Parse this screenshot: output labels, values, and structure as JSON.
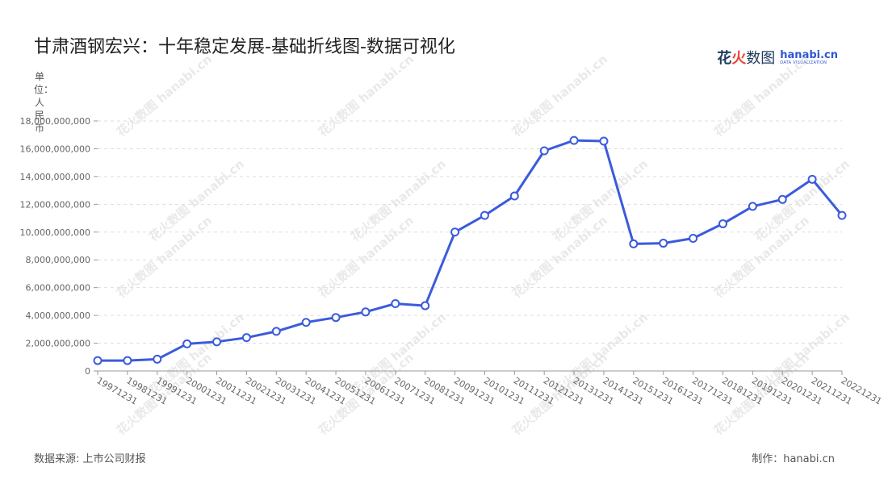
{
  "page": {
    "title": "甘肃酒钢宏兴：十年稳定发展-基础折线图-数据可视化",
    "source": "数据来源: 上市公司财报",
    "maker": "制作：hanabi.cn"
  },
  "brand": {
    "zh_1": "花",
    "zh_2": "火",
    "zh_3": "数图",
    "en_name": "hanabi.cn",
    "en_sub": "DATA VISUALIZATION",
    "watermark": "花火数图 hanabi.cn"
  },
  "colors": {
    "line": "#3b5bdb",
    "grid": "#dddddd",
    "axis": "#999999"
  },
  "chart_data": {
    "type": "line",
    "title": "甘肃酒钢宏兴：十年稳定发展-基础折线图-数据可视化",
    "ylabel": "单位：人民币",
    "xlabel": "",
    "categories": [
      "19971231",
      "19981231",
      "19991231",
      "20001231",
      "20011231",
      "20021231",
      "20031231",
      "20041231",
      "20051231",
      "20061231",
      "20071231",
      "20081231",
      "20091231",
      "20101231",
      "20111231",
      "20121231",
      "20131231",
      "20141231",
      "20151231",
      "20161231",
      "20171231",
      "20181231",
      "20191231",
      "20201231",
      "20211231",
      "20221231"
    ],
    "series": [
      {
        "values": [
          750000000,
          750000000,
          850000000,
          1950000000,
          2100000000,
          2400000000,
          2850000000,
          3500000000,
          3850000000,
          4250000000,
          4850000000,
          4700000000,
          10000000000,
          11200000000,
          12600000000,
          15850000000,
          16600000000,
          16550000000,
          9150000000,
          9200000000,
          9550000000,
          10600000000,
          11850000000,
          12350000000,
          13800000000,
          11200000000
        ]
      }
    ],
    "ylim": [
      0,
      18000000000
    ],
    "yticks": [
      "0",
      "2,000,000,000",
      "4,000,000,000",
      "6,000,000,000",
      "8,000,000,000",
      "10,000,000,000",
      "12,000,000,000",
      "14,000,000,000",
      "16,000,000,000",
      "18,000,000,000"
    ],
    "grid": true,
    "legend": "none"
  }
}
